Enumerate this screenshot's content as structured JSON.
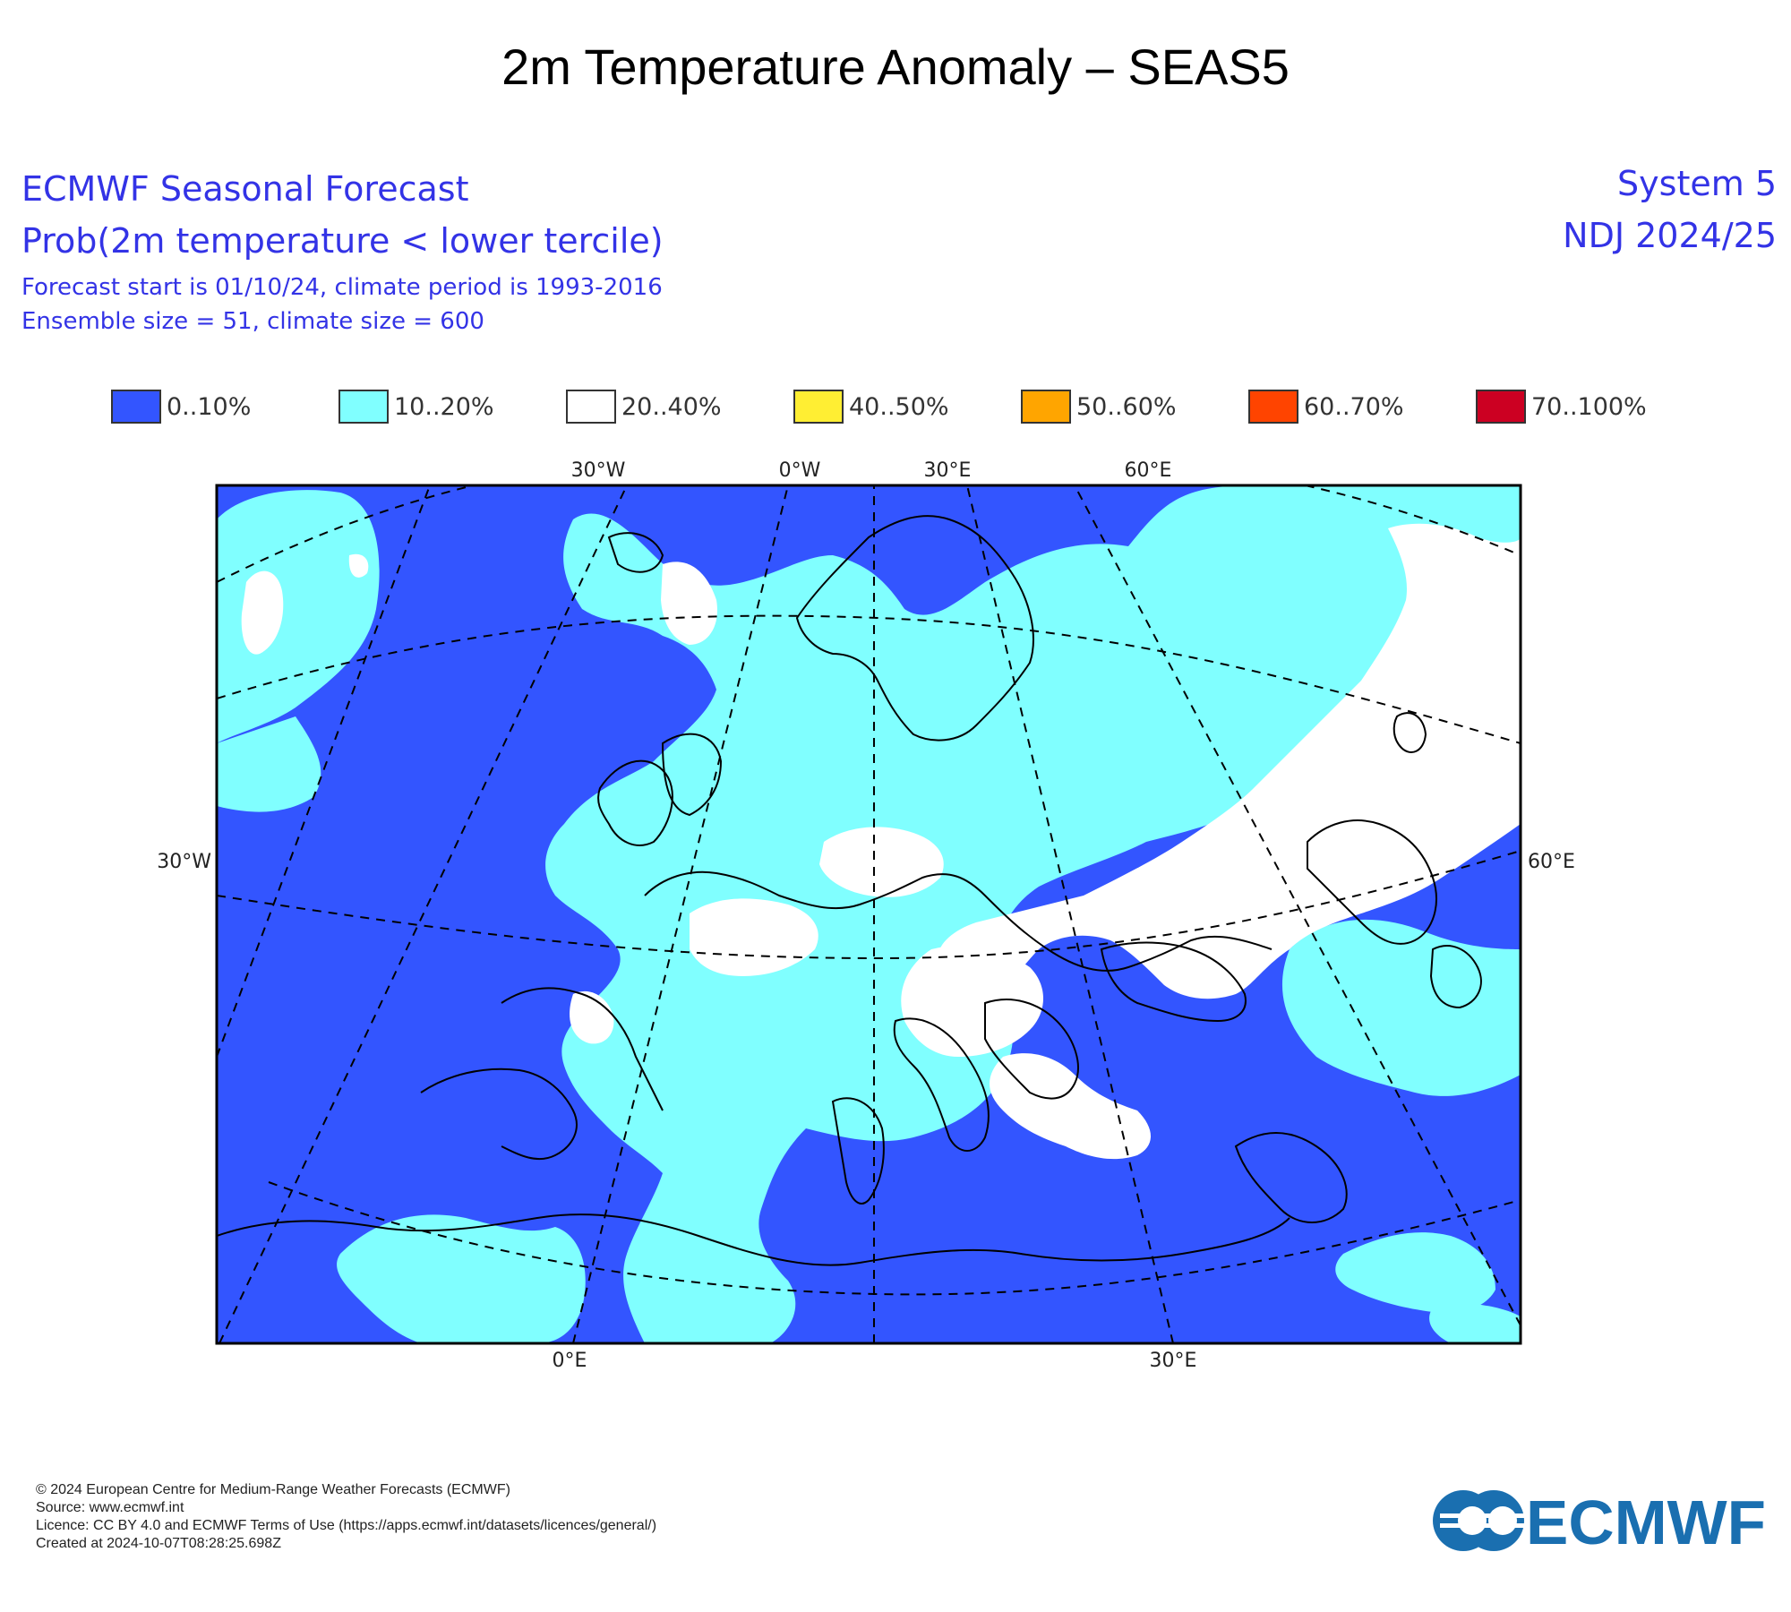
{
  "title": "2m Temperature Anomaly – SEAS5",
  "header": {
    "line1": "ECMWF Seasonal Forecast",
    "line2": "Prob(2m temperature < lower tercile)",
    "line3": "Forecast start is 01/10/24, climate period is 1993-2016",
    "line4": "Ensemble size = 51, climate size = 600",
    "system": "System 5",
    "period": "NDJ 2024/25"
  },
  "legend": [
    {
      "label": "0..10%",
      "color": "#3355ff"
    },
    {
      "label": "10..20%",
      "color": "#80ffff"
    },
    {
      "label": "20..40%",
      "color": "#ffffff"
    },
    {
      "label": "40..50%",
      "color": "#ffee33"
    },
    {
      "label": "50..60%",
      "color": "#ffa500"
    },
    {
      "label": "60..70%",
      "color": "#ff4400"
    },
    {
      "label": "70..100%",
      "color": "#cc0022"
    }
  ],
  "map": {
    "top_labels": [
      "30°W",
      "0°W",
      "30°E",
      "60°E"
    ],
    "left_label": "30°W",
    "right_label": "60°E",
    "bottom_labels": [
      "0°E",
      "30°E"
    ]
  },
  "footer": {
    "line1": "© 2024 European Centre for Medium-Range Weather Forecasts (ECMWF)",
    "line2": "Source: www.ecmwf.int",
    "line3": "Licence: CC BY 4.0 and ECMWF Terms of Use (https://apps.ecmwf.int/datasets/licences/general/)",
    "line4": "Created at 2024-10-07T08:28:25.698Z"
  },
  "logo_text": "ECMWF",
  "brand_color": "#1a6fb0"
}
